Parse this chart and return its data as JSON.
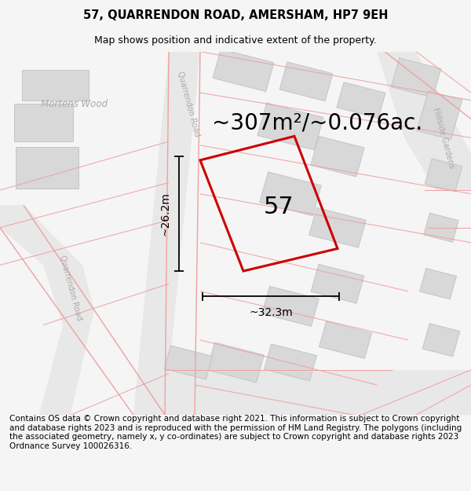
{
  "title_line1": "57, QUARRENDON ROAD, AMERSHAM, HP7 9EH",
  "title_line2": "Map shows position and indicative extent of the property.",
  "footer_text": "Contains OS data © Crown copyright and database right 2021. This information is subject to Crown copyright and database rights 2023 and is reproduced with the permission of HM Land Registry. The polygons (including the associated geometry, namely x, y co-ordinates) are subject to Crown copyright and database rights 2023 Ordnance Survey 100026316.",
  "area_label": "~307m²/~0.076ac.",
  "number_label": "57",
  "dim_horiz": "~32.3m",
  "dim_vert": "~26.2m",
  "bg_color": "#f5f5f5",
  "map_bg": "#ffffff",
  "building_color": "#d8d8d8",
  "building_edge": "#c0c0c0",
  "plot_line_color": "#cc0000",
  "road_line_color": "#f0a0a0",
  "dim_color": "#000000",
  "text_gray": "#aaaaaa",
  "title_fontsize": 10.5,
  "subtitle_fontsize": 9,
  "footer_fontsize": 7.5,
  "area_fontsize": 20,
  "number_fontsize": 22,
  "street_fontsize": 8.5
}
